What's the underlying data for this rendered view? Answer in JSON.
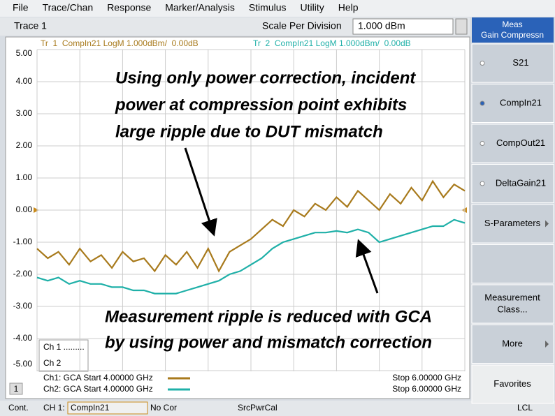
{
  "menu": [
    "File",
    "Trace/Chan",
    "Response",
    "Marker/Analysis",
    "Stimulus",
    "Utility",
    "Help"
  ],
  "toolbar": {
    "trace": "Trace 1",
    "scale_label": "Scale Per Division",
    "scale_value": "1.000 dBm"
  },
  "chart_data": {
    "type": "line",
    "x": [
      4.0,
      4.05,
      4.1,
      4.15,
      4.2,
      4.25,
      4.3,
      4.35,
      4.4,
      4.45,
      4.5,
      4.55,
      4.6,
      4.65,
      4.7,
      4.75,
      4.8,
      4.85,
      4.9,
      4.95,
      5.0,
      5.05,
      5.1,
      5.15,
      5.2,
      5.25,
      5.3,
      5.35,
      5.4,
      5.45,
      5.5,
      5.55,
      5.6,
      5.65,
      5.7,
      5.75,
      5.8,
      5.85,
      5.9,
      5.95,
      6.0
    ],
    "series": [
      {
        "name": "Tr  1  CompIn21 LogM 1.000dBm/  0.00dB",
        "color": "#a87a1c",
        "values": [
          -1.2,
          -1.5,
          -1.3,
          -1.7,
          -1.2,
          -1.6,
          -1.4,
          -1.8,
          -1.3,
          -1.6,
          -1.5,
          -1.9,
          -1.4,
          -1.7,
          -1.3,
          -1.8,
          -1.2,
          -1.9,
          -1.3,
          -1.1,
          -0.9,
          -0.6,
          -0.3,
          -0.5,
          0.0,
          -0.2,
          0.2,
          0.0,
          0.4,
          0.1,
          0.6,
          0.3,
          0.0,
          0.5,
          0.2,
          0.7,
          0.3,
          0.9,
          0.4,
          0.8,
          0.6
        ]
      },
      {
        "name": "Tr  2  CompIn21 LogM 1.000dBm/  0.00dB",
        "color": "#1fb0a8",
        "values": [
          -2.1,
          -2.2,
          -2.1,
          -2.3,
          -2.2,
          -2.3,
          -2.3,
          -2.4,
          -2.4,
          -2.5,
          -2.5,
          -2.6,
          -2.6,
          -2.6,
          -2.5,
          -2.4,
          -2.3,
          -2.2,
          -2.0,
          -1.9,
          -1.7,
          -1.5,
          -1.2,
          -1.0,
          -0.9,
          -0.8,
          -0.7,
          -0.7,
          -0.65,
          -0.7,
          -0.6,
          -0.7,
          -1.0,
          -0.9,
          -0.8,
          -0.7,
          -0.6,
          -0.5,
          -0.5,
          -0.3,
          -0.4
        ]
      }
    ],
    "xlim": [
      4,
      6
    ],
    "xticks": [
      4,
      4.2,
      4.4,
      4.6,
      4.8,
      5,
      5.2,
      5.4,
      5.6,
      5.8,
      6
    ],
    "ylim": [
      -5,
      5
    ],
    "yticks": [
      {
        "value": 5,
        "label": "5.00"
      },
      {
        "value": 4,
        "label": "4.00"
      },
      {
        "value": 3,
        "label": "3.00"
      },
      {
        "value": 2,
        "label": "2.00"
      },
      {
        "value": 1,
        "label": "1.00"
      },
      {
        "value": 0,
        "label": "0.00"
      },
      {
        "value": -1,
        "label": "-1.00"
      },
      {
        "value": -2,
        "label": "-2.00"
      },
      {
        "value": -3,
        "label": "-3.00"
      },
      {
        "value": -4,
        "label": "-4.00"
      },
      {
        "value": -5,
        "label": "-5.00"
      }
    ],
    "grid": true,
    "annotations": [
      [
        "Using only power correction, incident",
        "power at compression point exhibits",
        "large ripple due to DUT mismatch"
      ],
      [
        "Measurement ripple is reduced with GCA",
        "by using power and mismatch correction"
      ]
    ]
  },
  "channel_legend": {
    "ch1": "Ch 1  .........",
    "ch2": "Ch 2",
    "ch1_start": "Ch1: GCA Start  4.00000 GHz",
    "ch1_stop": "Stop  6.00000 GHz",
    "ch2_start": "Ch2: GCA Start  4.00000 GHz",
    "ch2_stop": "Stop  6.00000 GHz",
    "window": "1"
  },
  "softkeys": {
    "header": [
      "Meas",
      "Gain Compressn"
    ],
    "buttons": [
      "S21",
      "CompIn21",
      "CompOut21",
      "DeltaGain21",
      "S-Parameters",
      "",
      "Measurement|Class...",
      "More",
      "Favorites"
    ]
  },
  "status": [
    "Cont.",
    "CH 1:",
    "CompIn21",
    "No Cor",
    "SrcPwrCal",
    "LCL"
  ]
}
